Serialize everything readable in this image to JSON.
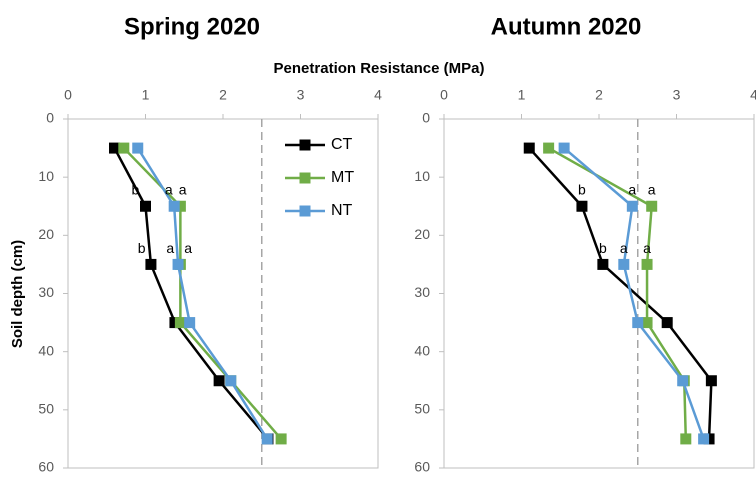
{
  "figure": {
    "x_axis_title": "Penetration Resistance (MPa)",
    "y_axis_title": "Soil depth (cm)"
  },
  "chart_data": [
    {
      "type": "line",
      "title": "Spring 2020",
      "xlabel": "Penetration Resistance (MPa)",
      "ylabel": "Soil depth (cm)",
      "xlim": [
        0,
        4
      ],
      "ylim": [
        0,
        60
      ],
      "y_inverted": true,
      "x_axis_position": "top",
      "x_ticks": [
        0,
        1,
        2,
        3,
        4
      ],
      "y_ticks": [
        0,
        10,
        20,
        30,
        40,
        50,
        60
      ],
      "reference_line_x": 2.5,
      "grid": false,
      "legend_position": "top-right",
      "series": [
        {
          "name": "CT",
          "color": "#000000",
          "x": [
            0.6,
            1.0,
            1.07,
            1.38,
            1.95,
            2.58
          ],
          "y": [
            5,
            15,
            25,
            35,
            45,
            55
          ]
        },
        {
          "name": "MT",
          "color": "#70AD47",
          "x": [
            0.72,
            1.45,
            1.45,
            1.45,
            2.1,
            2.75
          ],
          "y": [
            5,
            15,
            25,
            35,
            45,
            55
          ]
        },
        {
          "name": "NT",
          "color": "#5B9BD5",
          "x": [
            0.9,
            1.37,
            1.42,
            1.57,
            2.1,
            2.57
          ],
          "y": [
            5,
            15,
            25,
            35,
            45,
            55
          ]
        }
      ],
      "annotations": [
        {
          "text": "b",
          "x": 0.87,
          "y": 13
        },
        {
          "text": "a",
          "x": 1.3,
          "y": 13
        },
        {
          "text": "a",
          "x": 1.48,
          "y": 13
        },
        {
          "text": "b",
          "x": 0.95,
          "y": 23
        },
        {
          "text": "a",
          "x": 1.32,
          "y": 23
        },
        {
          "text": "a",
          "x": 1.55,
          "y": 23
        }
      ]
    },
    {
      "type": "line",
      "title": "Autumn 2020",
      "xlabel": "Penetration Resistance (MPa)",
      "ylabel": "Soil depth (cm)",
      "xlim": [
        0,
        4
      ],
      "ylim": [
        0,
        60
      ],
      "y_inverted": true,
      "x_axis_position": "top",
      "x_ticks": [
        0,
        1,
        2,
        3,
        4
      ],
      "y_ticks": [
        0,
        10,
        20,
        30,
        40,
        50,
        60
      ],
      "reference_line_x": 2.5,
      "grid": false,
      "series": [
        {
          "name": "CT",
          "color": "#000000",
          "x": [
            1.1,
            1.78,
            2.05,
            2.88,
            3.45,
            3.42
          ],
          "y": [
            5,
            15,
            25,
            35,
            45,
            55
          ]
        },
        {
          "name": "MT",
          "color": "#70AD47",
          "x": [
            1.35,
            2.68,
            2.62,
            2.62,
            3.1,
            3.12
          ],
          "y": [
            5,
            15,
            25,
            35,
            45,
            55
          ]
        },
        {
          "name": "NT",
          "color": "#5B9BD5",
          "x": [
            1.55,
            2.43,
            2.32,
            2.5,
            3.08,
            3.35
          ],
          "y": [
            5,
            15,
            25,
            35,
            45,
            55
          ]
        }
      ],
      "annotations": [
        {
          "text": "b",
          "x": 1.78,
          "y": 13
        },
        {
          "text": "a",
          "x": 2.43,
          "y": 13
        },
        {
          "text": "a",
          "x": 2.68,
          "y": 13
        },
        {
          "text": "b",
          "x": 2.05,
          "y": 23
        },
        {
          "text": "a",
          "x": 2.32,
          "y": 23
        },
        {
          "text": "a",
          "x": 2.62,
          "y": 23
        }
      ]
    }
  ]
}
